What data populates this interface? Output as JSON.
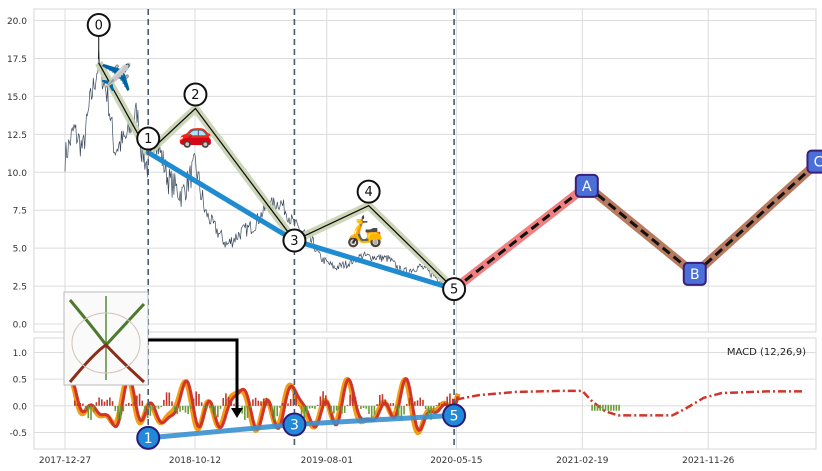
{
  "chart_data": [
    {
      "type": "line",
      "panel": "price",
      "ylim": [
        -0.6,
        21.0
      ],
      "yticks": [
        "0.0",
        "2.5",
        "5.0",
        "7.5",
        "10.0",
        "12.5",
        "15.0",
        "17.5",
        "20.0"
      ],
      "grid": true,
      "price_series": {
        "x": [
          0,
          20,
          40,
          55,
          75,
          95,
          110,
          135,
          160,
          170,
          185,
          200,
          230,
          260,
          290,
          310,
          330,
          360,
          390,
          420,
          450,
          480,
          510,
          540,
          570,
          600,
          630,
          660,
          690,
          720,
          750,
          770,
          790,
          810,
          840,
          865
        ],
        "y": [
          11.0,
          12.8,
          11.5,
          14.5,
          17.2,
          15.0,
          11.5,
          12.2,
          14.0,
          11.5,
          10.2,
          12.5,
          9.5,
          8.5,
          10.5,
          7.5,
          6.5,
          5.2,
          6.0,
          6.5,
          7.8,
          8.0,
          6.5,
          5.8,
          4.3,
          3.7,
          4.0,
          4.5,
          4.4,
          4.3,
          3.4,
          3.6,
          3.8,
          3.4,
          2.8,
          2.5
        ]
      },
      "wave_points": [
        {
          "label": "0",
          "x": 75,
          "y": 17.2
        },
        {
          "label": "1",
          "x": 185,
          "y": 11.3
        },
        {
          "label": "2",
          "x": 290,
          "y": 14.2
        },
        {
          "label": "3",
          "x": 510,
          "y": 5.5
        },
        {
          "label": "4",
          "x": 675,
          "y": 7.8
        },
        {
          "label": "5",
          "x": 865,
          "y": 2.3
        }
      ],
      "projection_points": [
        {
          "label": "A",
          "x": 1160,
          "y": 9.1
        },
        {
          "label": "B",
          "x": 1400,
          "y": 3.3
        },
        {
          "label": "C",
          "x": 1675,
          "y": 10.7
        }
      ],
      "trend_lines": [
        {
          "from": "1",
          "to": "3"
        },
        {
          "from": "3",
          "to": "5"
        }
      ],
      "vertical_markers_x": [
        185,
        510,
        865
      ],
      "emoji": {
        "plane": "✈️",
        "car": "🚗",
        "scooter": "🛵"
      }
    },
    {
      "type": "bar",
      "panel": "macd",
      "title": "MACD (12,26,9)",
      "ylim": [
        -0.85,
        1.35
      ],
      "yticks": [
        "-0.5",
        "0.0",
        "0.5",
        "1.0"
      ],
      "xticks": [
        "2017-12-27",
        "2018-10-12",
        "2019-08-01",
        "2020-05-15",
        "2021-02-19",
        "2021-11-26"
      ],
      "xtick_days": [
        0,
        289,
        582,
        870,
        1150,
        1430
      ],
      "macd_points": [
        {
          "label": "1",
          "x": 185,
          "y": -0.6
        },
        {
          "label": "3",
          "x": 510,
          "y": -0.35
        },
        {
          "label": "5",
          "x": 865,
          "y": -0.18
        }
      ]
    }
  ]
}
